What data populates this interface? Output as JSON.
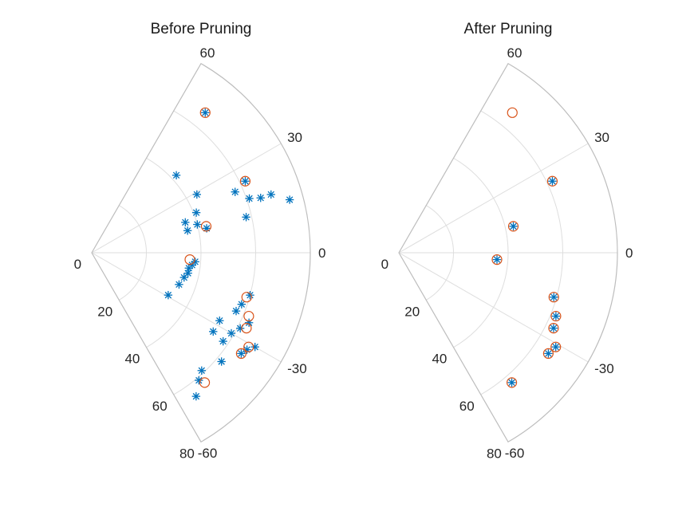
{
  "chart_data": [
    {
      "type": "scatter",
      "subtype": "polar-sector",
      "title": "Before Pruning",
      "theta_range_deg": [
        -60,
        60
      ],
      "r_range": [
        0,
        80
      ],
      "theta_tick_labels": [
        "60",
        "30",
        "0",
        "-30",
        "-60"
      ],
      "r_tick_labels": [
        "0",
        "20",
        "40",
        "60",
        "80"
      ],
      "grid": true,
      "colors": {
        "star": "#0072bd",
        "circle": "#d95319"
      },
      "series": [
        {
          "marker": "asterisk",
          "points": [
            {
              "theta": 51,
              "r": 66
            },
            {
              "theta": 42.5,
              "r": 42
            },
            {
              "theta": 29,
              "r": 44
            },
            {
              "theta": 25,
              "r": 62
            },
            {
              "theta": 23,
              "r": 57
            },
            {
              "theta": 19,
              "r": 61
            },
            {
              "theta": 18,
              "r": 69
            },
            {
              "theta": 18,
              "r": 65
            },
            {
              "theta": 15,
              "r": 75
            },
            {
              "theta": 13,
              "r": 58
            },
            {
              "theta": 21,
              "r": 41
            },
            {
              "theta": 18,
              "r": 36
            },
            {
              "theta": 15,
              "r": 40
            },
            {
              "theta": 12,
              "r": 43
            },
            {
              "theta": 13,
              "r": 36
            },
            {
              "theta": -5,
              "r": 38
            },
            {
              "theta": -7,
              "r": 37
            },
            {
              "theta": -9,
              "r": 36
            },
            {
              "theta": -12,
              "r": 36
            },
            {
              "theta": -15,
              "r": 35
            },
            {
              "theta": -20,
              "r": 34
            },
            {
              "theta": -29,
              "r": 32
            },
            {
              "theta": -15,
              "r": 60
            },
            {
              "theta": -19,
              "r": 58
            },
            {
              "theta": -22,
              "r": 57
            },
            {
              "theta": -24,
              "r": 63
            },
            {
              "theta": -27,
              "r": 61
            },
            {
              "theta": -28,
              "r": 53
            },
            {
              "theta": -33,
              "r": 53
            },
            {
              "theta": -30,
              "r": 59
            },
            {
              "theta": -34,
              "r": 58
            },
            {
              "theta": -32,
              "r": 67
            },
            {
              "theta": -30,
              "r": 69
            },
            {
              "theta": -40,
              "r": 62
            },
            {
              "theta": -47,
              "r": 59
            },
            {
              "theta": -50,
              "r": 61
            },
            {
              "theta": -54,
              "r": 65
            },
            {
              "theta": -34,
              "r": 66
            }
          ]
        },
        {
          "marker": "circle",
          "points": [
            {
              "theta": 51,
              "r": 66
            },
            {
              "theta": 25,
              "r": 62
            },
            {
              "theta": 13,
              "r": 43
            },
            {
              "theta": -4,
              "r": 36
            },
            {
              "theta": -16,
              "r": 59
            },
            {
              "theta": -22,
              "r": 62
            },
            {
              "theta": -26,
              "r": 63
            },
            {
              "theta": -31,
              "r": 67
            },
            {
              "theta": -34,
              "r": 66
            },
            {
              "theta": -49,
              "r": 63
            }
          ]
        }
      ]
    },
    {
      "type": "scatter",
      "subtype": "polar-sector",
      "title": "After Pruning",
      "theta_range_deg": [
        -60,
        60
      ],
      "r_range": [
        0,
        80
      ],
      "theta_tick_labels": [
        "60",
        "30",
        "0",
        "-30",
        "-60"
      ],
      "r_tick_labels": [
        "0",
        "20",
        "40",
        "60",
        "80"
      ],
      "grid": true,
      "colors": {
        "star": "#0072bd",
        "circle": "#d95319"
      },
      "series": [
        {
          "marker": "asterisk",
          "points": [
            {
              "theta": 25,
              "r": 62
            },
            {
              "theta": 13,
              "r": 43
            },
            {
              "theta": -4,
              "r": 36
            },
            {
              "theta": -16,
              "r": 59
            },
            {
              "theta": -22,
              "r": 62
            },
            {
              "theta": -26,
              "r": 63
            },
            {
              "theta": -31,
              "r": 67
            },
            {
              "theta": -34,
              "r": 66
            },
            {
              "theta": -49,
              "r": 63
            }
          ]
        },
        {
          "marker": "circle",
          "points": [
            {
              "theta": 51,
              "r": 66
            },
            {
              "theta": 25,
              "r": 62
            },
            {
              "theta": 13,
              "r": 43
            },
            {
              "theta": -4,
              "r": 36
            },
            {
              "theta": -16,
              "r": 59
            },
            {
              "theta": -22,
              "r": 62
            },
            {
              "theta": -26,
              "r": 63
            },
            {
              "theta": -31,
              "r": 67
            },
            {
              "theta": -34,
              "r": 66
            },
            {
              "theta": -49,
              "r": 63
            }
          ]
        }
      ]
    }
  ]
}
